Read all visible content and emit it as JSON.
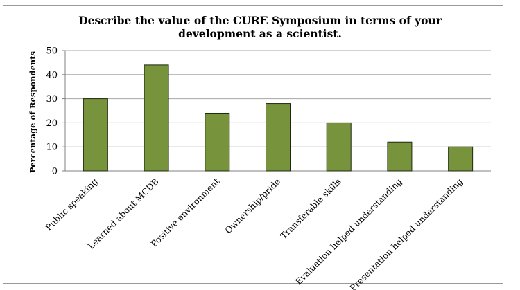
{
  "chart_data": {
    "type": "bar",
    "title_lines": [
      "Describe the value of the CURE Symposium in terms of your",
      "development as a scientist."
    ],
    "ylabel": "Percentage of Respondents",
    "xlabel": "",
    "categories": [
      "Public speaking",
      "Learned about MCDB",
      "Positive environment",
      "Ownership/pride",
      "Transferable skills",
      "Evaluation helped understanding",
      "Presentation helped understanding"
    ],
    "values": [
      30,
      44,
      24,
      28,
      20,
      12,
      10
    ],
    "ylim": [
      0,
      50
    ],
    "yticks": [
      "0",
      "10",
      "20",
      "30",
      "40",
      "50"
    ],
    "grid": true,
    "bar_color": "#77933c",
    "bar_edge_color": "#1e2a10",
    "grid_color": "#a6a6a6"
  }
}
